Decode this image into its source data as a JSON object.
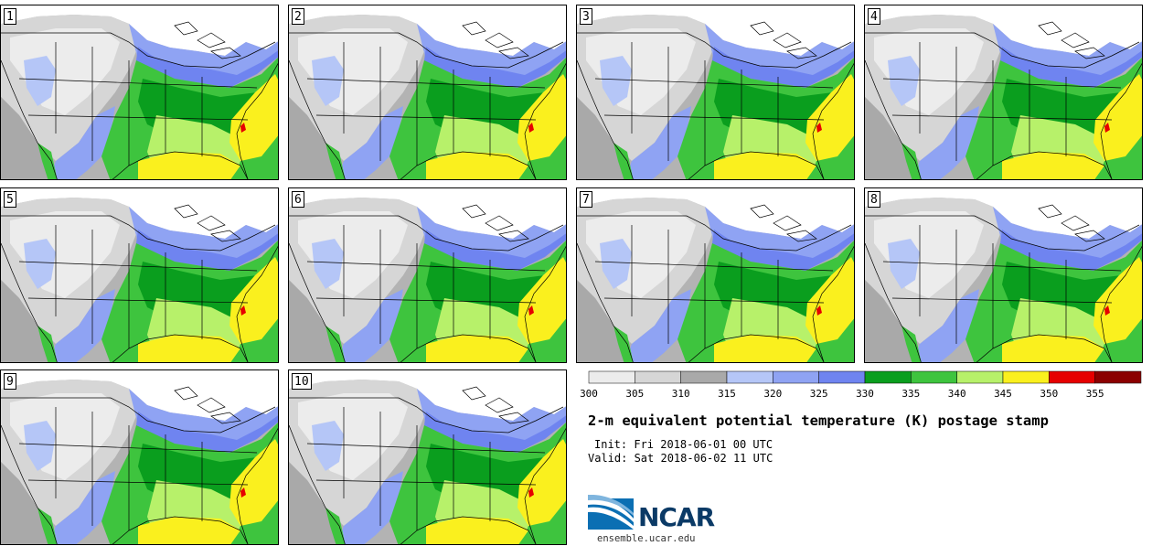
{
  "figure": {
    "title": "2-m equivalent potential temperature (K) postage stamp",
    "init_text": "Init: Fri 2018-06-01 00 UTC",
    "valid_text": "Valid: Sat 2018-06-02 11 UTC"
  },
  "members": [
    "1",
    "2",
    "3",
    "4",
    "5",
    "6",
    "7",
    "8",
    "9",
    "10"
  ],
  "colorbar": {
    "unit": "K",
    "ticks": [
      "300",
      "305",
      "310",
      "315",
      "320",
      "325",
      "330",
      "335",
      "340",
      "345",
      "350",
      "355"
    ],
    "colors": [
      "#ececec",
      "#d6d6d6",
      "#a9a9a9",
      "#b5c6f7",
      "#8fa3f3",
      "#6f84f0",
      "#0a9e1e",
      "#3ec43e",
      "#b7f16a",
      "#faf01e",
      "#e60000",
      "#8b0000"
    ]
  },
  "logo": {
    "text": "NCAR",
    "url": "ensemble.ucar.edu"
  },
  "map": {
    "palette": {
      "ocean": "#b3b3b3",
      "canada": "#ffffff",
      "c300": "#ececec",
      "c305": "#d6d6d6",
      "c310": "#a9a9a9",
      "c315": "#b5c6f7",
      "c320": "#8fa3f3",
      "c325": "#6f84f0",
      "c330": "#0a9e1e",
      "c335": "#3ec43e",
      "c340": "#b7f16a",
      "c345": "#faf01e",
      "c350": "#e60000",
      "border": "#000000"
    }
  }
}
